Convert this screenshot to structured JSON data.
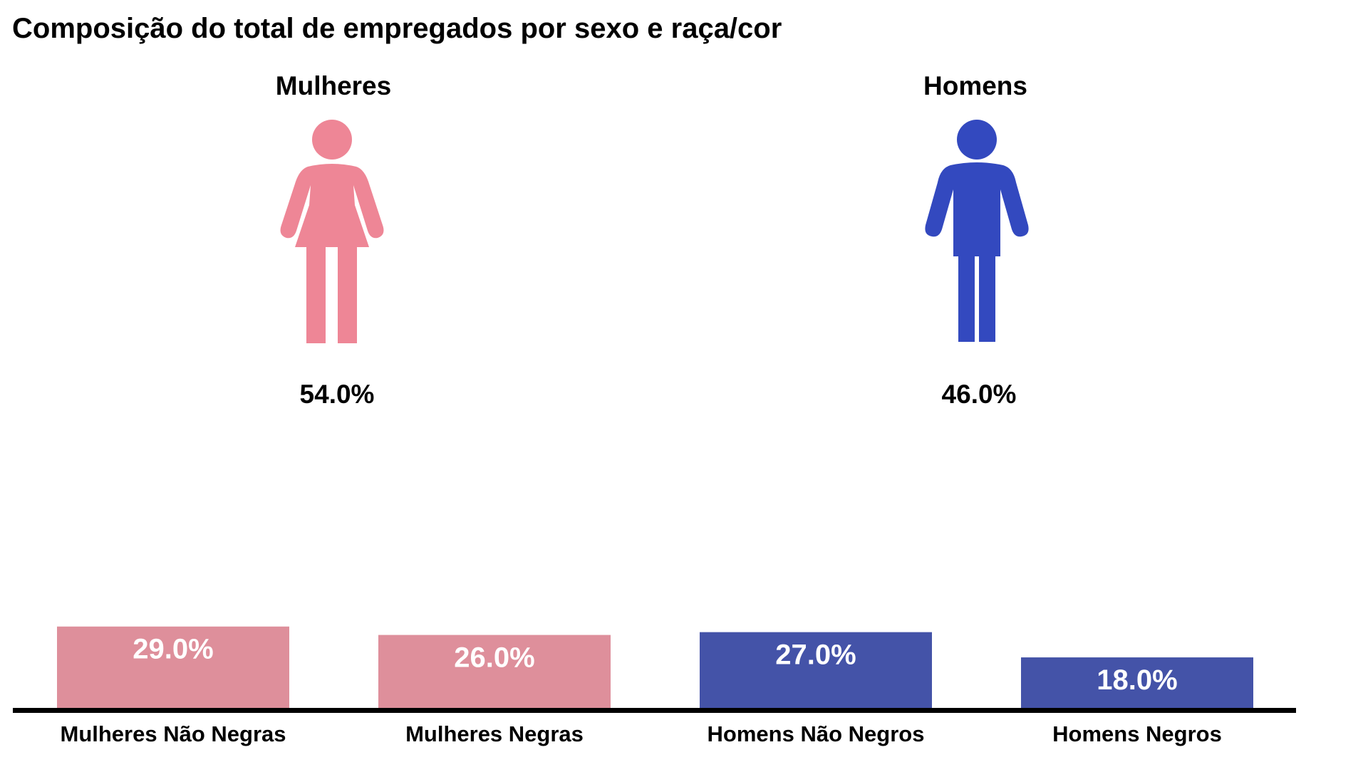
{
  "title": "Composição do total de empregados por sexo e raça/cor",
  "groups": [
    {
      "label": "Mulheres",
      "percent": "54.0%",
      "icon": "woman-figure-icon",
      "color": "#ee8696"
    },
    {
      "label": "Homens",
      "percent": "46.0%",
      "icon": "man-figure-icon",
      "color": "#3349bf"
    }
  ],
  "chart_data": {
    "type": "bar",
    "categories": [
      "Mulheres Não Negras",
      "Mulheres Negras",
      "Homens Não Negros",
      "Homens Negros"
    ],
    "values": [
      29.0,
      26.0,
      27.0,
      18.0
    ],
    "data_labels": [
      "29.0%",
      "26.0%",
      "27.0%",
      "18.0%"
    ],
    "colors": [
      "#de8f9b",
      "#de8f9b",
      "#4453a8",
      "#4453a8"
    ],
    "title": "",
    "xlabel": "",
    "ylabel": "",
    "ylim": [
      0,
      29
    ],
    "grid": false
  }
}
